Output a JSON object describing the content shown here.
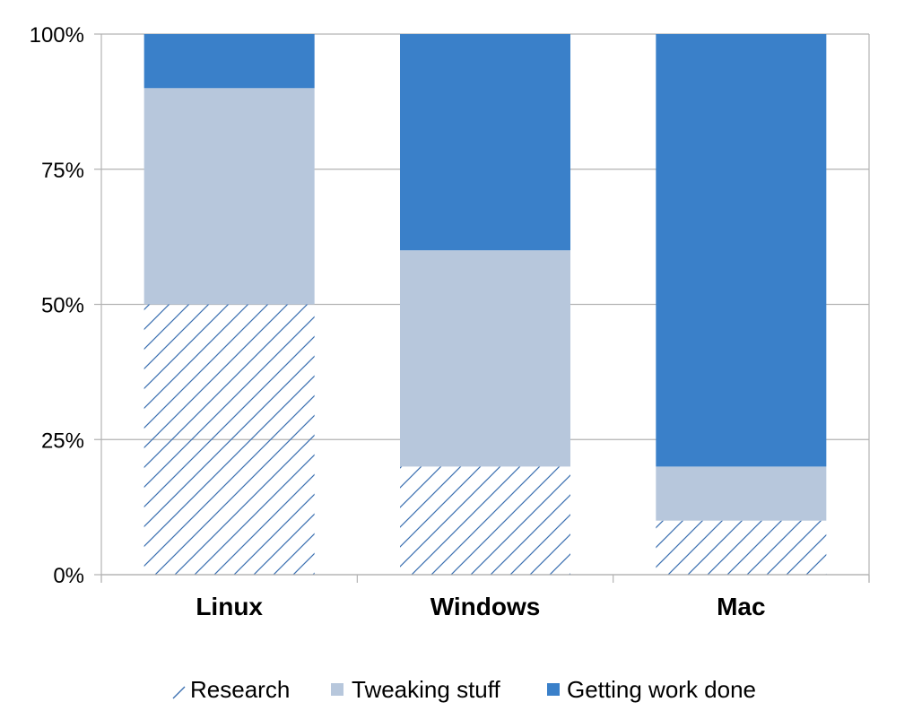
{
  "chart_data": {
    "type": "bar",
    "stacked": true,
    "percent_stacked": true,
    "title": "",
    "xlabel": "",
    "ylabel": "",
    "categories": [
      "Linux",
      "Windows",
      "Mac"
    ],
    "series": [
      {
        "name": "Research",
        "values": [
          50,
          20,
          10
        ],
        "color": "#3a6fb0",
        "fill": "hatch"
      },
      {
        "name": "Tweaking stuff",
        "values": [
          40,
          40,
          10
        ],
        "color": "#b7c7dc",
        "fill": "solid"
      },
      {
        "name": "Getting work done",
        "values": [
          10,
          40,
          80
        ],
        "color": "#3a80c9",
        "fill": "solid"
      }
    ],
    "yticks": [
      "0%",
      "25%",
      "50%",
      "75%",
      "100%"
    ],
    "ylim": [
      0,
      100
    ],
    "grid": true,
    "legend_position": "bottom"
  },
  "legend": {
    "items": [
      {
        "label": "Research"
      },
      {
        "label": "Tweaking stuff"
      },
      {
        "label": "Getting work done"
      }
    ]
  }
}
